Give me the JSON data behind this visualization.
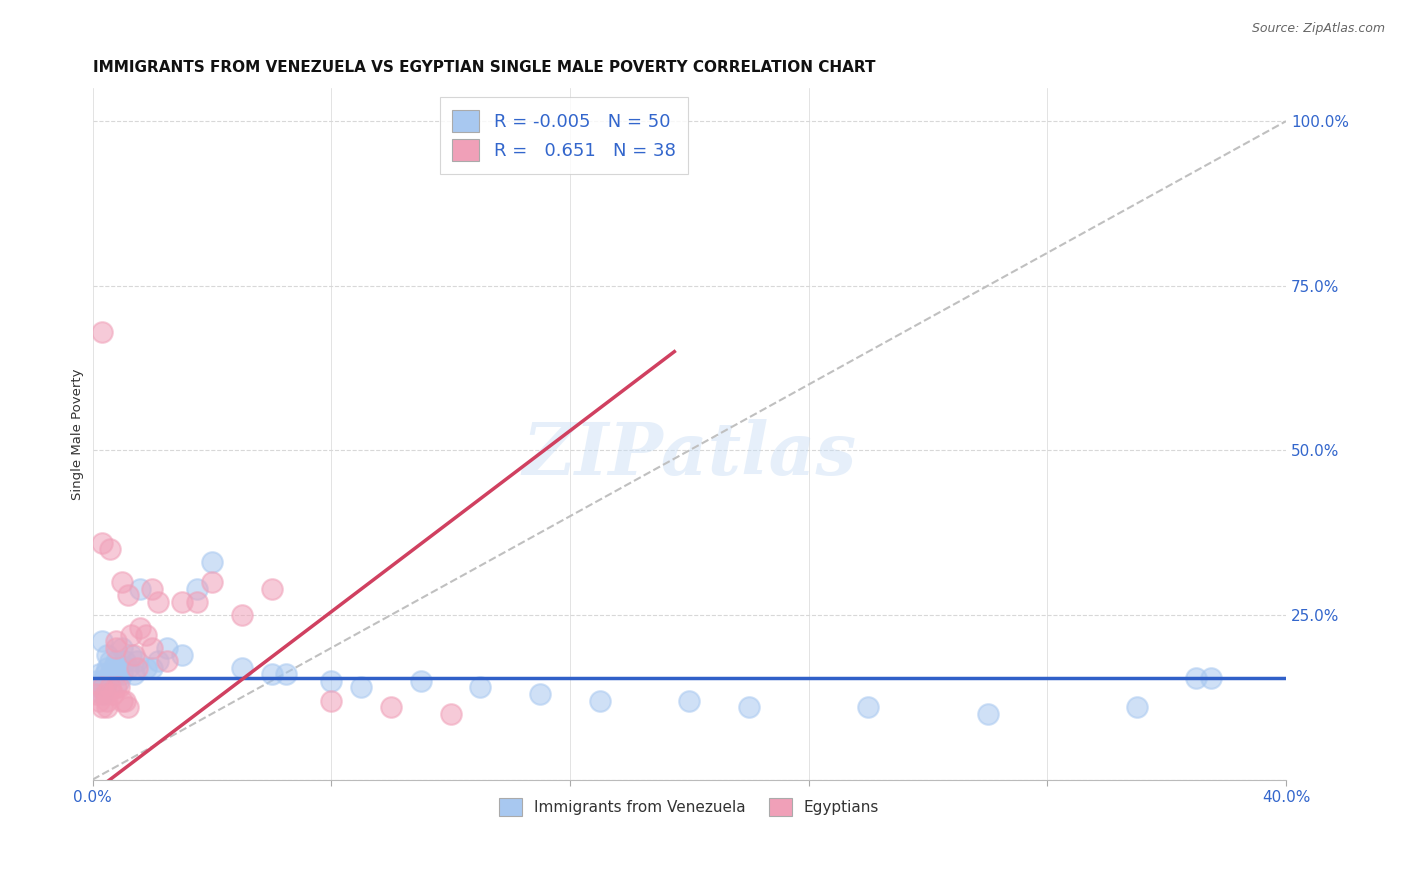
{
  "title": "IMMIGRANTS FROM VENEZUELA VS EGYPTIAN SINGLE MALE POVERTY CORRELATION CHART",
  "source": "Source: ZipAtlas.com",
  "ylabel": "Single Male Poverty",
  "watermark": "ZIPatlas",
  "xlim": [
    0.0,
    0.4
  ],
  "ylim": [
    0.0,
    1.05
  ],
  "x_tick_positions": [
    0.0,
    0.08,
    0.16,
    0.24,
    0.32,
    0.4
  ],
  "x_tick_labels": [
    "0.0%",
    "",
    "",
    "",
    "",
    "40.0%"
  ],
  "y_ticks_right": [
    0.0,
    0.25,
    0.5,
    0.75,
    1.0
  ],
  "y_tick_labels_right": [
    "",
    "25.0%",
    "50.0%",
    "75.0%",
    "100.0%"
  ],
  "blue_color": "#a8c8f0",
  "pink_color": "#f0a0b8",
  "blue_line_color": "#3060c8",
  "pink_line_color": "#d04060",
  "diag_line_color": "#c0c0c0",
  "legend_R_blue": "-0.005",
  "legend_N_blue": "50",
  "legend_R_pink": "0.651",
  "legend_N_pink": "38",
  "legend_label_blue": "Immigrants from Venezuela",
  "legend_label_pink": "Egyptians",
  "blue_x": [
    0.001,
    0.002,
    0.002,
    0.003,
    0.003,
    0.004,
    0.004,
    0.005,
    0.005,
    0.006,
    0.006,
    0.007,
    0.007,
    0.008,
    0.008,
    0.009,
    0.009,
    0.01,
    0.01,
    0.011,
    0.012,
    0.013,
    0.014,
    0.015,
    0.016,
    0.018,
    0.02,
    0.022,
    0.025,
    0.03,
    0.035,
    0.04,
    0.05,
    0.06,
    0.065,
    0.08,
    0.09,
    0.11,
    0.13,
    0.15,
    0.17,
    0.2,
    0.22,
    0.26,
    0.3,
    0.35,
    0.003,
    0.005,
    0.37,
    0.375
  ],
  "blue_y": [
    0.15,
    0.14,
    0.16,
    0.13,
    0.15,
    0.14,
    0.16,
    0.15,
    0.17,
    0.16,
    0.18,
    0.16,
    0.17,
    0.16,
    0.18,
    0.15,
    0.17,
    0.16,
    0.2,
    0.18,
    0.17,
    0.19,
    0.16,
    0.18,
    0.29,
    0.17,
    0.17,
    0.18,
    0.2,
    0.19,
    0.29,
    0.33,
    0.17,
    0.16,
    0.16,
    0.15,
    0.14,
    0.15,
    0.14,
    0.13,
    0.12,
    0.12,
    0.11,
    0.11,
    0.1,
    0.11,
    0.21,
    0.19,
    0.155,
    0.155
  ],
  "pink_x": [
    0.001,
    0.002,
    0.003,
    0.003,
    0.004,
    0.005,
    0.005,
    0.006,
    0.007,
    0.008,
    0.008,
    0.009,
    0.01,
    0.011,
    0.012,
    0.013,
    0.014,
    0.015,
    0.016,
    0.018,
    0.02,
    0.022,
    0.025,
    0.03,
    0.035,
    0.04,
    0.05,
    0.06,
    0.08,
    0.1,
    0.12,
    0.003,
    0.006,
    0.008,
    0.01,
    0.012,
    0.02,
    0.003
  ],
  "pink_y": [
    0.13,
    0.12,
    0.11,
    0.14,
    0.13,
    0.12,
    0.11,
    0.14,
    0.13,
    0.14,
    0.2,
    0.14,
    0.12,
    0.12,
    0.11,
    0.22,
    0.19,
    0.17,
    0.23,
    0.22,
    0.2,
    0.27,
    0.18,
    0.27,
    0.27,
    0.3,
    0.25,
    0.29,
    0.12,
    0.11,
    0.1,
    0.36,
    0.35,
    0.21,
    0.3,
    0.28,
    0.29,
    0.68
  ],
  "blue_line_x": [
    0.0,
    0.4
  ],
  "blue_line_y": [
    0.155,
    0.155
  ],
  "pink_line_x": [
    0.0,
    0.195
  ],
  "pink_line_y": [
    -0.02,
    0.65
  ],
  "diag_line_x": [
    0.0,
    0.4
  ],
  "diag_line_y": [
    0.0,
    1.0
  ],
  "grid_color": "#d8d8d8",
  "background_color": "#ffffff",
  "title_fontsize": 11,
  "watermark_fontsize": 52
}
